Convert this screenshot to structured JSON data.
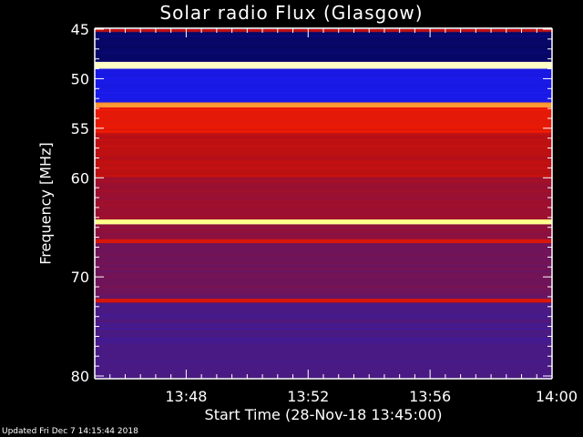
{
  "chart_data": {
    "type": "heatmap",
    "title": "Solar radio Flux (Glasgow)",
    "xlabel": "Start Time (28-Nov-18 13:45:00)",
    "ylabel": "Frequency [MHz]",
    "xlim": [
      "13:45",
      "14:00"
    ],
    "ylim": [
      45,
      80
    ],
    "y_inverted": true,
    "xticks": [
      "13:48",
      "13:52",
      "13:56",
      "14:00"
    ],
    "yticks": [
      45,
      50,
      55,
      60,
      70,
      80
    ],
    "colormap": [
      "#000020",
      "#1010c0",
      "#2020ff",
      "#4a1a80",
      "#8a1040",
      "#c01010",
      "#ff2000",
      "#ff8020",
      "#ffff80",
      "#ffffff"
    ],
    "bands": [
      {
        "f_min": 45.0,
        "f_max": 45.3,
        "level": 0.55
      },
      {
        "f_min": 45.3,
        "f_max": 48.3,
        "level": 0.05
      },
      {
        "f_min": 48.3,
        "f_max": 49.0,
        "level": 0.95
      },
      {
        "f_min": 49.0,
        "f_max": 52.4,
        "level": 0.18
      },
      {
        "f_min": 52.4,
        "f_max": 52.9,
        "level": 0.8
      },
      {
        "f_min": 52.9,
        "f_max": 55.5,
        "level": 0.62
      },
      {
        "f_min": 55.5,
        "f_max": 60.0,
        "level": 0.55
      },
      {
        "f_min": 60.0,
        "f_max": 64.2,
        "level": 0.48
      },
      {
        "f_min": 64.2,
        "f_max": 64.7,
        "level": 0.9
      },
      {
        "f_min": 64.7,
        "f_max": 66.2,
        "level": 0.45
      },
      {
        "f_min": 66.2,
        "f_max": 66.6,
        "level": 0.6
      },
      {
        "f_min": 66.6,
        "f_max": 72.2,
        "level": 0.4
      },
      {
        "f_min": 72.2,
        "f_max": 72.6,
        "level": 0.6
      },
      {
        "f_min": 72.6,
        "f_max": 80.0,
        "level": 0.33
      }
    ]
  },
  "footer": {
    "updated": "Updated Fri Dec  7 14:15:44 2018"
  }
}
